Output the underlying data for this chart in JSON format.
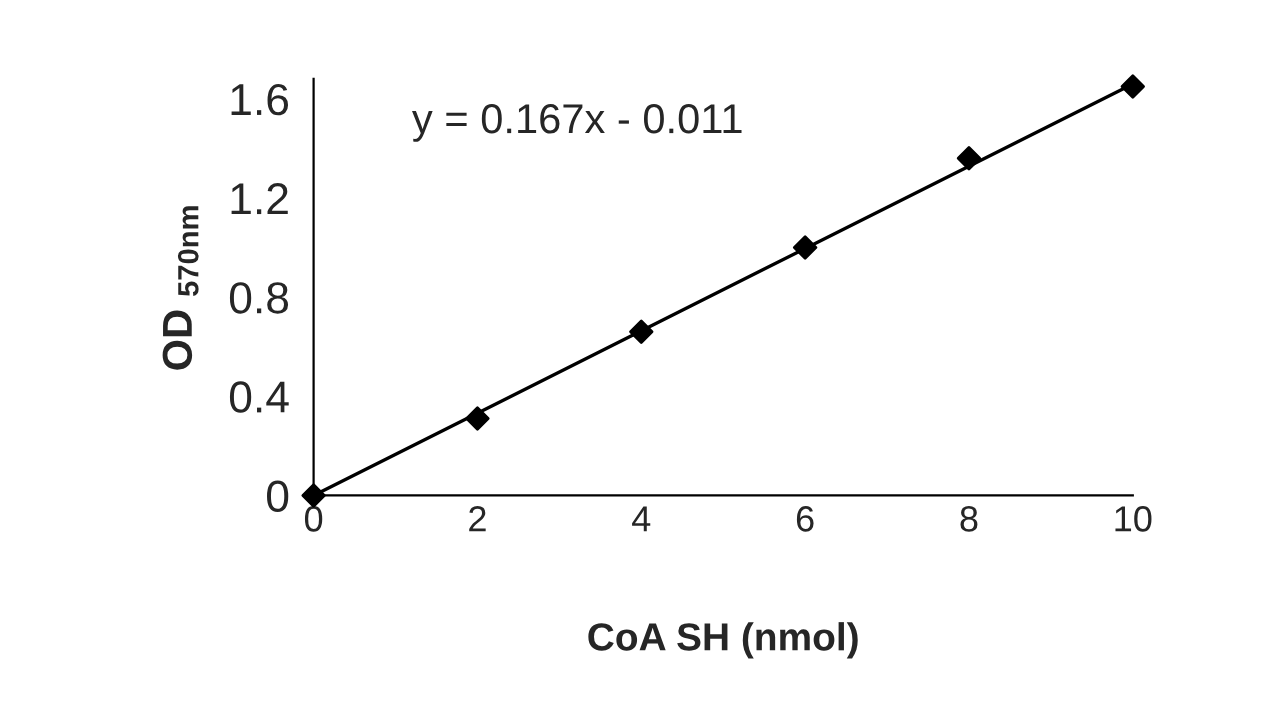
{
  "chart_data": {
    "type": "scatter",
    "xlabel": "CoA SH (nmol)",
    "ylabel": "OD $_{570nm}$",
    "annotations": [
      "y = 0.167x - 0.011"
    ],
    "series": [
      {
        "color": "#000000",
        "marker": "diamond",
        "x": [
          0,
          2,
          4,
          6,
          8,
          10
        ],
        "values": [
          0,
          0.31,
          0.66,
          1.0,
          1.36,
          1.65
        ]
      },
      {
        "type": "line",
        "color": "#000000",
        "x": [
          0,
          10
        ],
        "values": [
          0,
          1.66
        ]
      }
    ],
    "xlim": [
      0,
      10
    ],
    "ylim": [
      0,
      1.68
    ],
    "xticks": [
      0,
      2,
      4,
      6,
      8,
      10
    ],
    "yticks": [
      0,
      0.4,
      0.8,
      1.2,
      1.6
    ],
    "grid": false,
    "legend": false
  }
}
